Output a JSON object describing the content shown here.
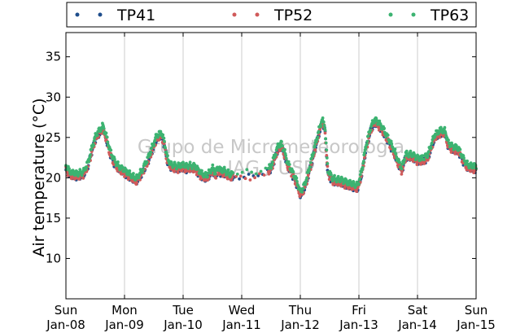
{
  "chart_data": {
    "type": "scatter",
    "title": "",
    "xlabel": "",
    "ylabel": "Air temperature (°C)",
    "x_units": "days since start (Jan-08 00:00)",
    "xlim": [
      0,
      7
    ],
    "ylim": [
      5,
      38
    ],
    "yticks": [
      10,
      15,
      20,
      25,
      30,
      35
    ],
    "grid": "vertical lines at day boundaries",
    "legend": "top, horizontal, outside plot",
    "x_tick_labels": [
      {
        "day": "Sun",
        "date": "Jan-08"
      },
      {
        "day": "Mon",
        "date": "Jan-09"
      },
      {
        "day": "Tue",
        "date": "Jan-10"
      },
      {
        "day": "Wed",
        "date": "Jan-11"
      },
      {
        "day": "Thu",
        "date": "Jan-12"
      },
      {
        "day": "Fri",
        "date": "Jan-13"
      },
      {
        "day": "Sat",
        "date": "Jan-14"
      },
      {
        "day": "Sun",
        "date": "Jan-15"
      }
    ],
    "watermark": [
      "Grupo de Micrometeorologia",
      "IAG / USP"
    ],
    "base_curve": [
      [
        0.0,
        21.0
      ],
      [
        0.05,
        20.5
      ],
      [
        0.1,
        20.2
      ],
      [
        0.2,
        20.1
      ],
      [
        0.3,
        20.3
      ],
      [
        0.38,
        21.5
      ],
      [
        0.45,
        23.5
      ],
      [
        0.52,
        25.0
      ],
      [
        0.6,
        25.7
      ],
      [
        0.63,
        26.0
      ],
      [
        0.68,
        25.0
      ],
      [
        0.75,
        23.0
      ],
      [
        0.82,
        21.8
      ],
      [
        0.9,
        21.0
      ],
      [
        1.0,
        20.5
      ],
      [
        1.1,
        20.0
      ],
      [
        1.2,
        19.5
      ],
      [
        1.3,
        20.5
      ],
      [
        1.4,
        22.0
      ],
      [
        1.48,
        23.5
      ],
      [
        1.55,
        24.8
      ],
      [
        1.63,
        25.2
      ],
      [
        1.68,
        24.0
      ],
      [
        1.73,
        22.0
      ],
      [
        1.8,
        21.2
      ],
      [
        1.9,
        21.0
      ],
      [
        2.0,
        21.2
      ],
      [
        2.05,
        21.0
      ],
      [
        2.1,
        21.1
      ],
      [
        2.2,
        21.0
      ],
      [
        2.3,
        20.2
      ],
      [
        2.4,
        19.8
      ],
      [
        2.45,
        20.3
      ],
      [
        2.5,
        20.8
      ],
      [
        2.55,
        20.2
      ],
      [
        2.6,
        20.8
      ],
      [
        2.65,
        20.5
      ],
      [
        2.7,
        20.5
      ],
      [
        2.8,
        20.0
      ],
      [
        2.9,
        20.1
      ],
      [
        3.0,
        20.1
      ],
      [
        3.1,
        20.2
      ],
      [
        3.2,
        20.0
      ],
      [
        3.3,
        20.4
      ],
      [
        3.4,
        20.5
      ],
      [
        3.5,
        21.0
      ],
      [
        3.55,
        22.0
      ],
      [
        3.62,
        23.5
      ],
      [
        3.68,
        23.8
      ],
      [
        3.73,
        22.8
      ],
      [
        3.78,
        21.5
      ],
      [
        3.85,
        20.5
      ],
      [
        3.92,
        19.5
      ],
      [
        3.97,
        18.5
      ],
      [
        4.0,
        17.8
      ],
      [
        4.05,
        18.3
      ],
      [
        4.1,
        19.3
      ],
      [
        4.18,
        21.5
      ],
      [
        4.25,
        23.5
      ],
      [
        4.32,
        25.5
      ],
      [
        4.37,
        26.8
      ],
      [
        4.42,
        26.0
      ],
      [
        4.45,
        22.5
      ],
      [
        4.47,
        20.5
      ],
      [
        4.55,
        19.5
      ],
      [
        4.7,
        19.3
      ],
      [
        4.8,
        19.0
      ],
      [
        4.9,
        18.8
      ],
      [
        4.98,
        18.6
      ],
      [
        5.05,
        20.5
      ],
      [
        5.12,
        23.5
      ],
      [
        5.2,
        25.8
      ],
      [
        5.27,
        26.8
      ],
      [
        5.32,
        26.5
      ],
      [
        5.4,
        25.8
      ],
      [
        5.5,
        24.5
      ],
      [
        5.6,
        23.0
      ],
      [
        5.68,
        21.5
      ],
      [
        5.73,
        20.8
      ],
      [
        5.8,
        22.5
      ],
      [
        5.9,
        22.5
      ],
      [
        6.0,
        22.0
      ],
      [
        6.1,
        22.0
      ],
      [
        6.18,
        22.5
      ],
      [
        6.25,
        24.0
      ],
      [
        6.3,
        25.0
      ],
      [
        6.4,
        25.5
      ],
      [
        6.47,
        25.4
      ],
      [
        6.52,
        24.0
      ],
      [
        6.58,
        23.5
      ],
      [
        6.7,
        23.2
      ],
      [
        6.78,
        22.0
      ],
      [
        6.85,
        21.2
      ],
      [
        6.95,
        21.0
      ],
      [
        7.0,
        21.0
      ]
    ],
    "gaps": [
      [
        2.85,
        3.45
      ]
    ],
    "series": [
      {
        "name": "TP41",
        "color": "#1f4e8c",
        "offset": 0.0
      },
      {
        "name": "TP52",
        "color": "#d05a5a",
        "offset": 0.0
      },
      {
        "name": "TP63",
        "color": "#3cb371",
        "offset": 0.45
      }
    ]
  }
}
